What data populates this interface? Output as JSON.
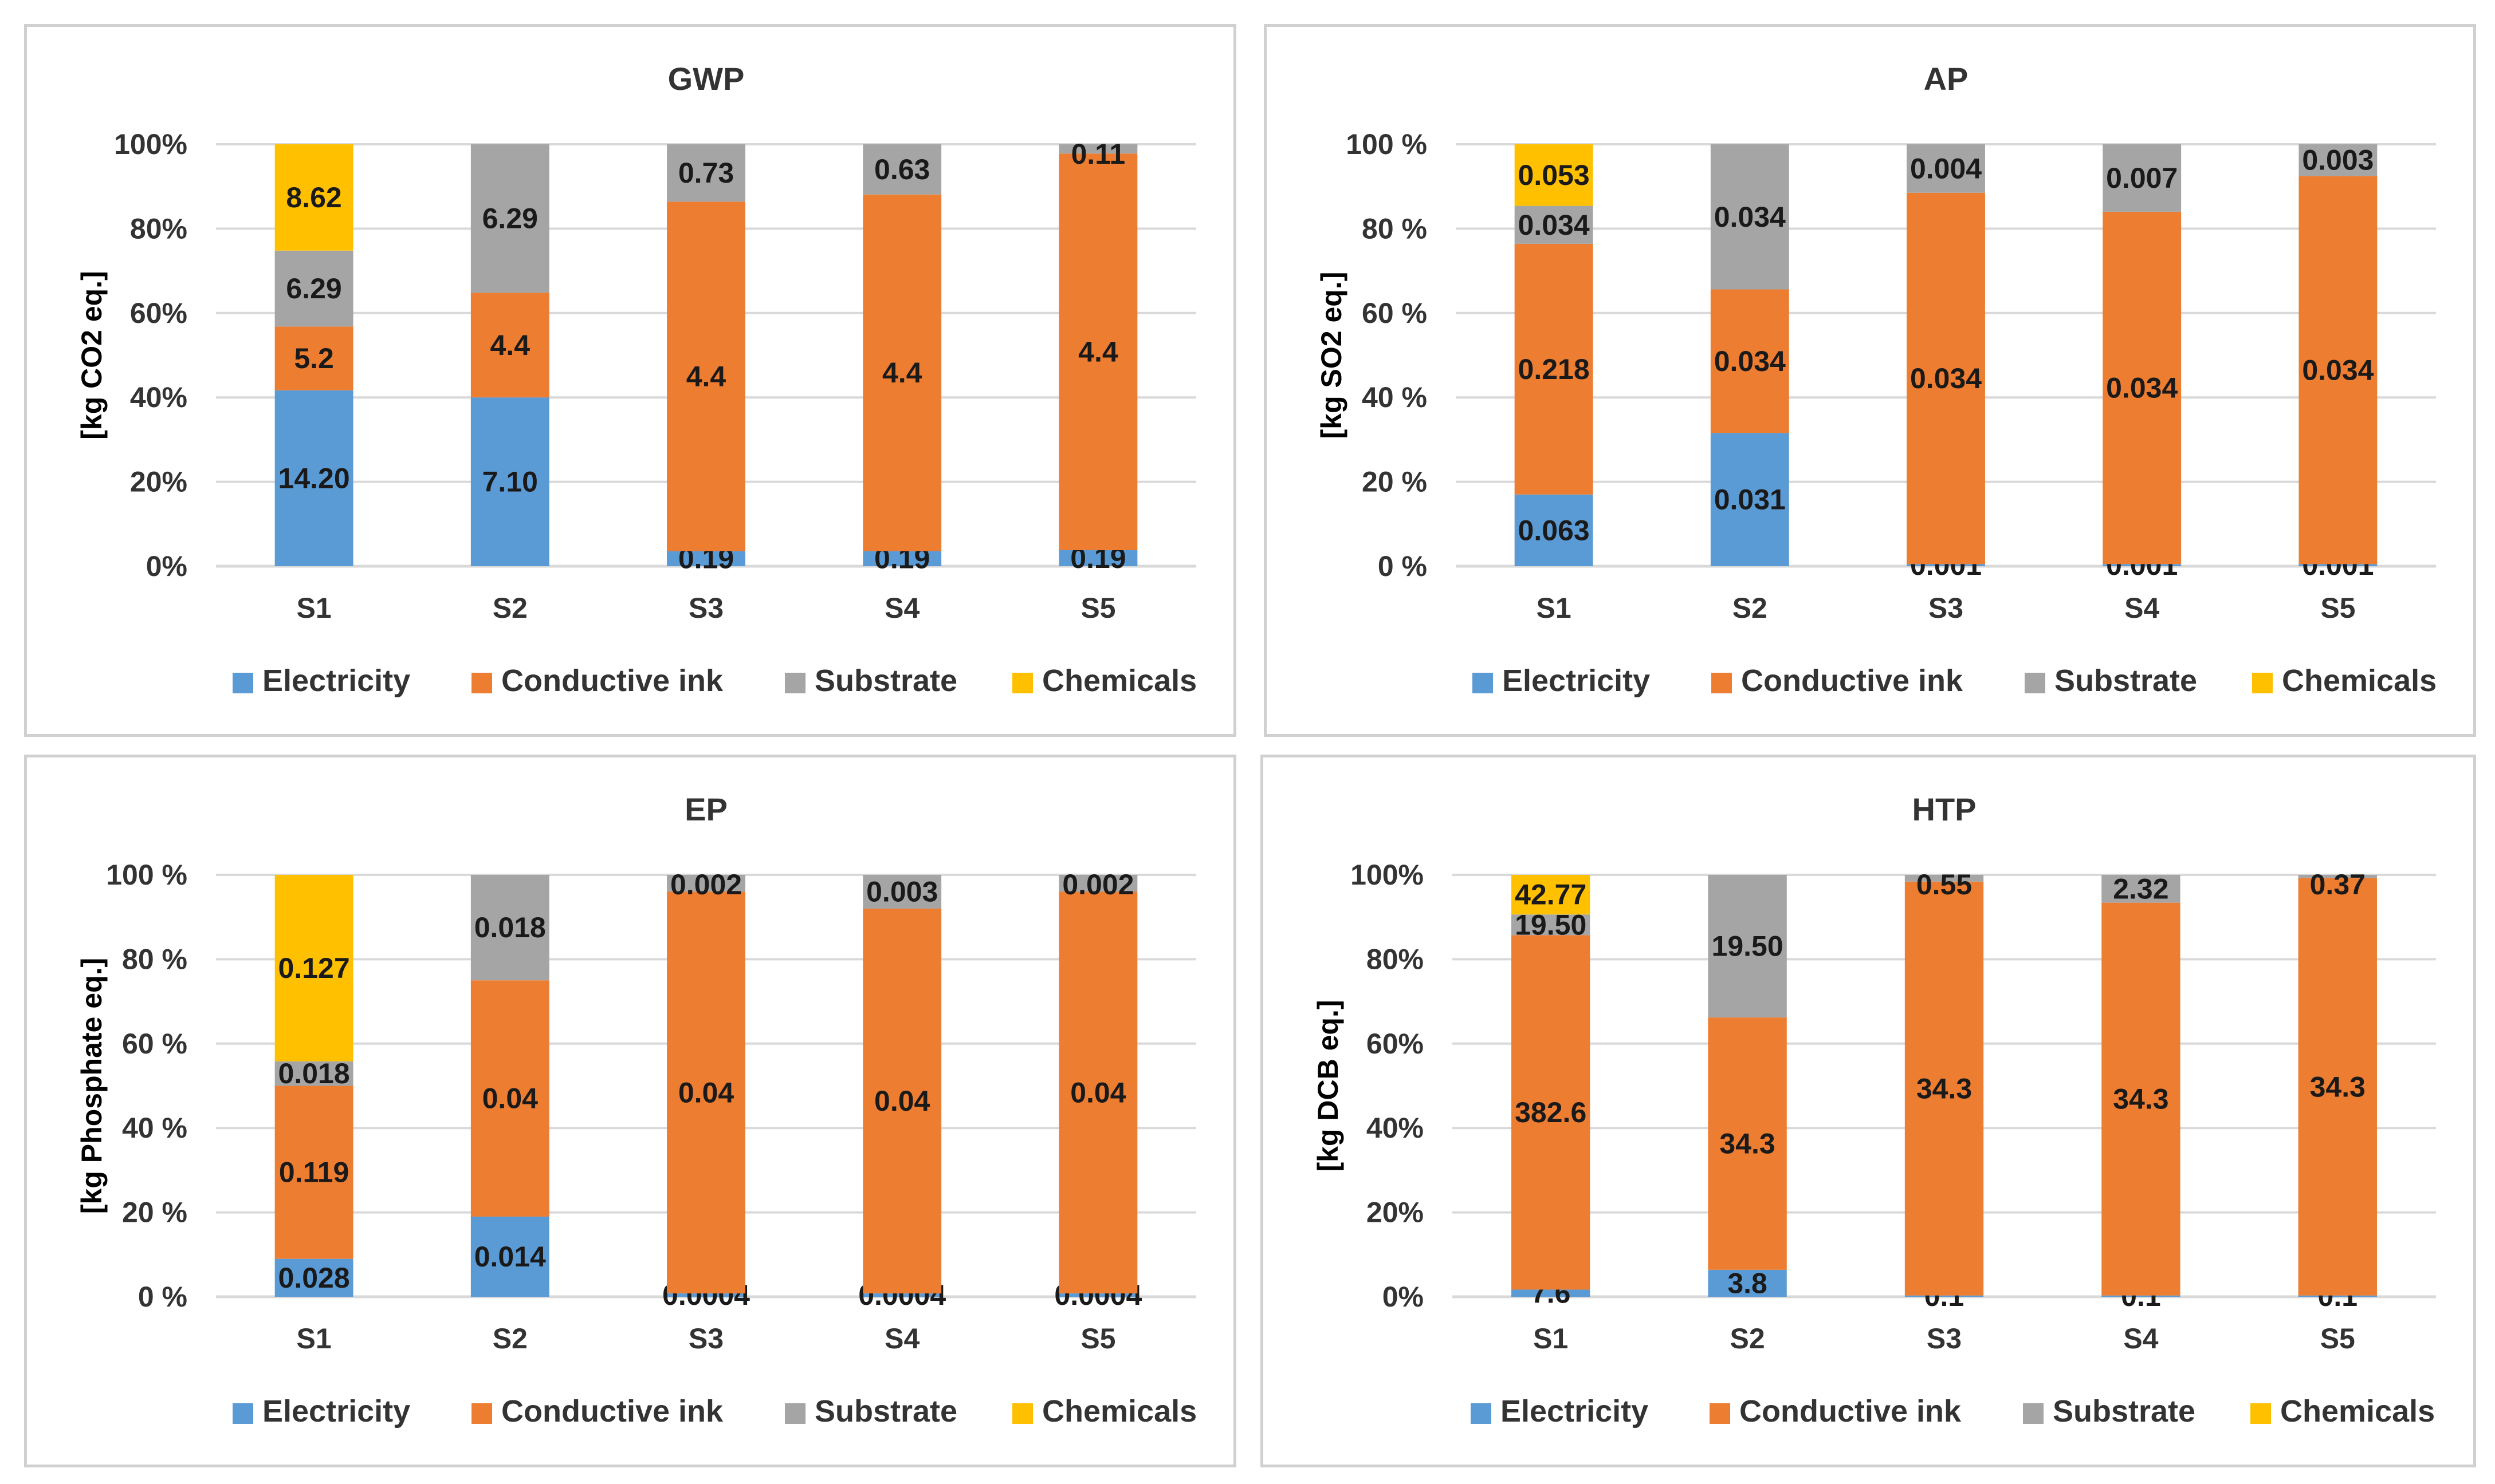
{
  "colors": {
    "Electricity": "#5b9bd5",
    "Conductive ink": "#ed7d31",
    "Substrate": "#a5a5a5",
    "Chemicals": "#ffc000"
  },
  "chart_data": [
    {
      "type": "bar",
      "stacked": "percent",
      "title": "GWP",
      "ylabel": "[kg CO2 eq.]",
      "yticks": [
        "0%",
        "20%",
        "40%",
        "60%",
        "80%",
        "100%"
      ],
      "categories": [
        "S1",
        "S2",
        "S3",
        "S4",
        "S5"
      ],
      "legend": [
        "Electricity",
        "Conductive ink",
        "Substrate",
        "Chemicals"
      ],
      "series": [
        {
          "name": "Electricity",
          "share": [
            41.7,
            40.0,
            3.6,
            3.6,
            3.8
          ],
          "labels": [
            "14.20",
            "7.10",
            "0.19",
            "0.19",
            "0.19"
          ]
        },
        {
          "name": "Conductive ink",
          "share": [
            15.1,
            24.8,
            82.8,
            84.5,
            94.0
          ],
          "labels": [
            "5.2",
            "4.4",
            "4.4",
            "4.4",
            "4.4"
          ]
        },
        {
          "name": "Substrate",
          "share": [
            18.0,
            35.2,
            13.6,
            11.9,
            2.2
          ],
          "labels": [
            "6.29",
            "6.29",
            "0.73",
            "0.63",
            "0.11"
          ]
        },
        {
          "name": "Chemicals",
          "share": [
            25.2,
            0,
            0,
            0,
            0
          ],
          "labels": [
            "8.62",
            "",
            "",
            "",
            ""
          ]
        }
      ]
    },
    {
      "type": "bar",
      "stacked": "percent",
      "title": "AP",
      "ylabel": "[kg SO2 eq.]",
      "yticks": [
        "0 %",
        "20 %",
        "40 %",
        "60 %",
        "80 %",
        "100 %"
      ],
      "categories": [
        "S1",
        "S2",
        "S3",
        "S4",
        "S5"
      ],
      "legend": [
        "Electricity",
        "Conductive ink",
        "Substrate",
        "Chemicals"
      ],
      "series": [
        {
          "name": "Electricity",
          "share": [
            17.0,
            31.6,
            0.5,
            0.5,
            0.5
          ],
          "labels": [
            "0.063",
            "0.031",
            "0.001",
            "0.001",
            "0.001"
          ]
        },
        {
          "name": "Conductive ink",
          "share": [
            59.4,
            34.0,
            88.0,
            83.5,
            92.0
          ],
          "labels": [
            "0.218",
            "0.034",
            "0.034",
            "0.034",
            "0.034"
          ]
        },
        {
          "name": "Substrate",
          "share": [
            9.0,
            34.4,
            11.5,
            16.0,
            7.5
          ],
          "labels": [
            "0.034",
            "0.034",
            "0.004",
            "0.007",
            "0.003"
          ]
        },
        {
          "name": "Chemicals",
          "share": [
            14.6,
            0,
            0,
            0,
            0
          ],
          "labels": [
            "0.053",
            "",
            "",
            "",
            ""
          ]
        }
      ]
    },
    {
      "type": "bar",
      "stacked": "percent",
      "title": "EP",
      "ylabel": "[kg Phosphate eq.]",
      "yticks": [
        "0 %",
        "20 %",
        "40 %",
        "60 %",
        "80 %",
        "100 %"
      ],
      "categories": [
        "S1",
        "S2",
        "S3",
        "S4",
        "S5"
      ],
      "legend": [
        "Electricity",
        "Conductive ink",
        "Substrate",
        "Chemicals"
      ],
      "series": [
        {
          "name": "Electricity",
          "share": [
            9.0,
            19.0,
            0.8,
            0.8,
            0.8
          ],
          "labels": [
            "0.028",
            "0.014",
            "0.0004",
            "0.0004",
            "0.0004"
          ]
        },
        {
          "name": "Conductive ink",
          "share": [
            41.0,
            56.0,
            95.2,
            91.2,
            95.2
          ],
          "labels": [
            "0.119",
            "0.04",
            "0.04",
            "0.04",
            "0.04"
          ]
        },
        {
          "name": "Substrate",
          "share": [
            5.8,
            25.0,
            4.0,
            8.0,
            4.0
          ],
          "labels": [
            "0.018",
            "0.018",
            "0.002",
            "0.003",
            "0.002"
          ]
        },
        {
          "name": "Chemicals",
          "share": [
            44.2,
            0,
            0,
            0,
            0
          ],
          "labels": [
            "0.127",
            "",
            "",
            "",
            ""
          ]
        }
      ]
    },
    {
      "type": "bar",
      "stacked": "percent",
      "title": "HTP",
      "ylabel": "[kg DCB eq.]",
      "yticks": [
        "0%",
        "20%",
        "40%",
        "60%",
        "80%",
        "100%"
      ],
      "categories": [
        "S1",
        "S2",
        "S3",
        "S4",
        "S5"
      ],
      "legend": [
        "Electricity",
        "Conductive ink",
        "Substrate",
        "Chemicals"
      ],
      "series": [
        {
          "name": "Electricity",
          "share": [
            1.7,
            6.4,
            0.3,
            0.3,
            0.3
          ],
          "labels": [
            "7.6",
            "3.8",
            "0.1",
            "0.1",
            "0.1"
          ]
        },
        {
          "name": "Conductive ink",
          "share": [
            84.0,
            59.8,
            98.1,
            93.1,
            98.9
          ],
          "labels": [
            "382.6",
            "34.3",
            "34.3",
            "34.3",
            "34.3"
          ]
        },
        {
          "name": "Substrate",
          "share": [
            4.9,
            33.8,
            1.6,
            6.6,
            0.8
          ],
          "labels": [
            "19.50",
            "19.50",
            "0.55",
            "2.32",
            "0.37"
          ]
        },
        {
          "name": "Chemicals",
          "share": [
            9.4,
            0,
            0,
            0,
            0
          ],
          "labels": [
            "42.77",
            "",
            "",
            "",
            ""
          ]
        }
      ]
    }
  ]
}
